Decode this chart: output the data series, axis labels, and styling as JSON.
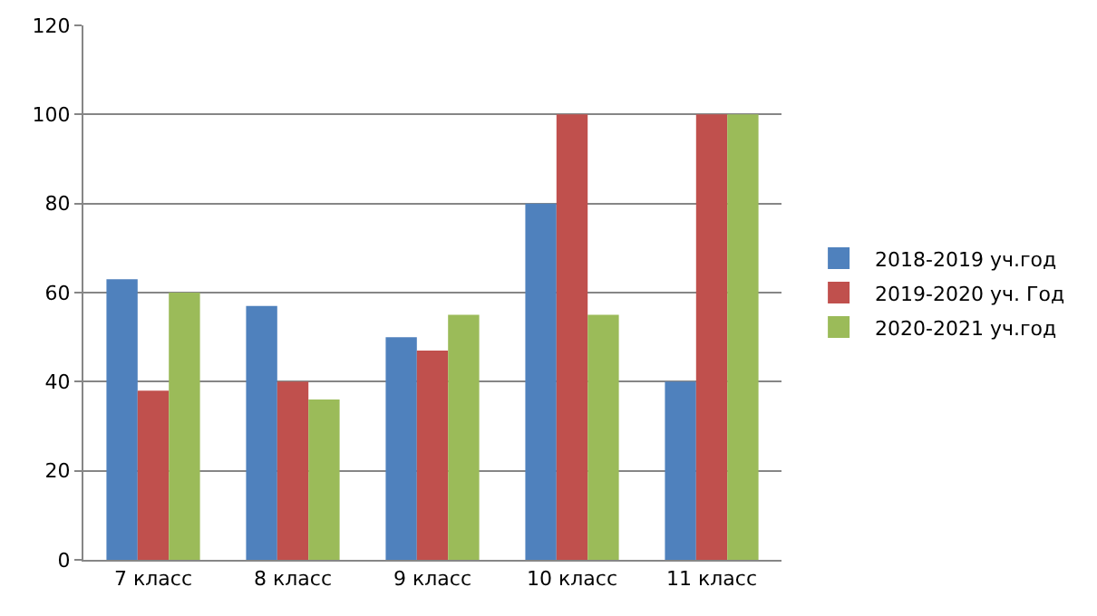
{
  "chart_data": {
    "type": "bar",
    "categories": [
      "7 класс",
      "8 класс",
      "9 класс",
      "10 класс",
      "11 класс"
    ],
    "series": [
      {
        "name": "2018-2019 уч.год",
        "color": "#4f81bd",
        "values": [
          63,
          57,
          50,
          80,
          40
        ]
      },
      {
        "name": "2019-2020 уч. Год",
        "color": "#c0504d",
        "values": [
          38,
          40,
          47,
          100,
          100
        ]
      },
      {
        "name": "2020-2021 уч.год",
        "color": "#9bbb59",
        "values": [
          60,
          36,
          55,
          55,
          100
        ]
      }
    ],
    "ylim": [
      0,
      120
    ],
    "yticks": [
      0,
      20,
      40,
      60,
      80,
      100,
      120
    ],
    "grid": "y",
    "legend": "right"
  }
}
